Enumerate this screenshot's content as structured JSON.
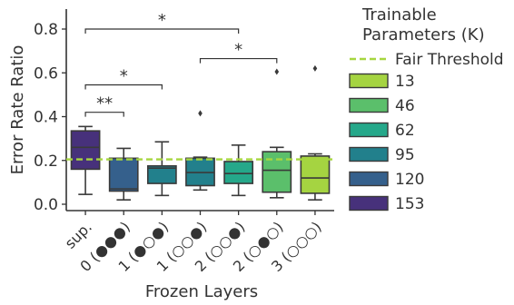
{
  "chart_data": {
    "type": "box",
    "ylabel": "Error Rate Ratio",
    "xlabel": "Frozen Layers",
    "ylim": [
      0,
      0.9
    ],
    "yticks": [
      0.0,
      0.2,
      0.4,
      0.6,
      0.8
    ],
    "ytick_labels": [
      "0.0",
      "0.2",
      "0.4",
      "0.6",
      "0.8"
    ],
    "categories": [
      "sup.",
      "0 (●●●)",
      "1 (●○●)",
      "1 (○○●)",
      "2 (○○●)",
      "2 (○●○)",
      "3 (○○○)"
    ],
    "boxes": [
      {
        "category": "sup.",
        "params_k": "153",
        "whisker_low": 0.045,
        "q1": 0.16,
        "median": 0.26,
        "q3": 0.335,
        "whisker_high": 0.355,
        "outliers": []
      },
      {
        "category": "0 (●●●)",
        "params_k": "120",
        "whisker_low": 0.02,
        "q1": 0.06,
        "median": 0.07,
        "q3": 0.21,
        "whisker_high": 0.255,
        "outliers": []
      },
      {
        "category": "1 (●○●)",
        "params_k": "95",
        "whisker_low": 0.04,
        "q1": 0.095,
        "median": 0.165,
        "q3": 0.175,
        "whisker_high": 0.285,
        "outliers": []
      },
      {
        "category": "1 (○○●)",
        "params_k": "95",
        "whisker_low": 0.065,
        "q1": 0.085,
        "median": 0.145,
        "q3": 0.21,
        "whisker_high": 0.215,
        "outliers": [
          0.415
        ]
      },
      {
        "category": "2 (○○●)",
        "params_k": "62",
        "whisker_low": 0.04,
        "q1": 0.095,
        "median": 0.14,
        "q3": 0.195,
        "whisker_high": 0.27,
        "outliers": []
      },
      {
        "category": "2 (○●○)",
        "params_k": "46",
        "whisker_low": 0.03,
        "q1": 0.055,
        "median": 0.155,
        "q3": 0.24,
        "whisker_high": 0.26,
        "outliers": [
          0.605
        ]
      },
      {
        "category": "3 (○○○)",
        "params_k": "13",
        "whisker_low": 0.02,
        "q1": 0.05,
        "median": 0.12,
        "q3": 0.22,
        "whisker_high": 0.23,
        "outliers": [
          0.62
        ]
      }
    ],
    "reference_line": {
      "label": "Fair Threshold",
      "value": 0.205,
      "color": "#a6d63f",
      "style": "dashed"
    },
    "significance": [
      {
        "from": 0,
        "to": 1,
        "label": "**",
        "y": 0.42
      },
      {
        "from": 0,
        "to": 2,
        "label": "*",
        "y": 0.545
      },
      {
        "from": 3,
        "to": 5,
        "label": "*",
        "y": 0.665
      },
      {
        "from": 0,
        "to": 4,
        "label": "*",
        "y": 0.8
      }
    ],
    "legend": {
      "title": "Trainable\nParameters (K)",
      "placement": "right",
      "entries": [
        {
          "label": "13",
          "color": "#a5d441"
        },
        {
          "label": "46",
          "color": "#5bbf6b"
        },
        {
          "label": "62",
          "color": "#25a88a"
        },
        {
          "label": "95",
          "color": "#22808c"
        },
        {
          "label": "120",
          "color": "#35608c"
        },
        {
          "label": "153",
          "color": "#47317b"
        }
      ]
    },
    "box_colors": [
      "#47317b",
      "#35608c",
      "#22808c",
      "#22808c",
      "#25a88a",
      "#5bbf6b",
      "#a5d441"
    ],
    "grid": false
  }
}
